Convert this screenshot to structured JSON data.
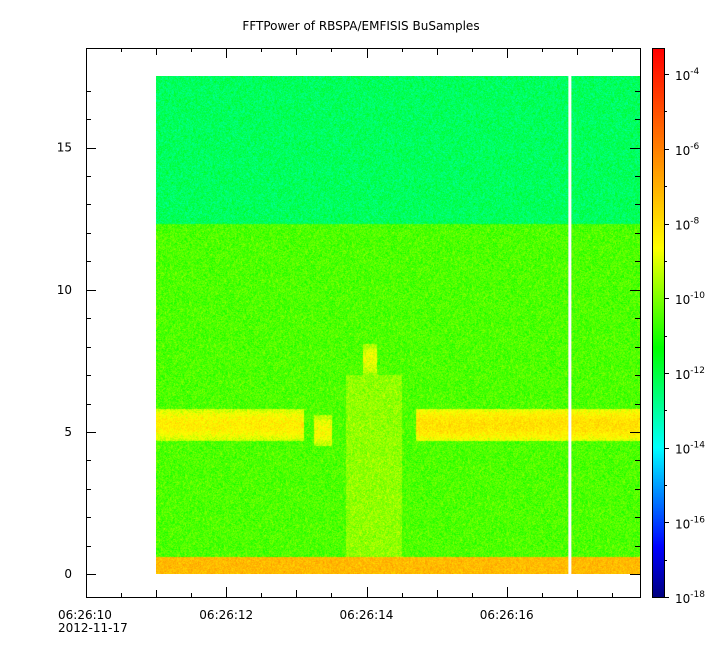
{
  "chart_data": {
    "type": "heatmap",
    "title": "FFTPower of RBSPA/EMFISIS  BuSamples",
    "xlabel": "",
    "ylabel": "",
    "x_ticks": [
      "06:26:10",
      "06:26:12",
      "06:26:14",
      "06:26:16"
    ],
    "x_tick_sublabel": "2012-11-17",
    "y_ticks": [
      0,
      5,
      10,
      15
    ],
    "ylim": [
      -0.8,
      18.5
    ],
    "xlim_seconds": [
      10,
      17.9
    ],
    "data_start_seconds": 11.0,
    "data_end_seconds": 17.9,
    "freq_max": 17.5,
    "gap_seconds": 16.9,
    "colorbar": {
      "scale": "log",
      "range": [
        -18,
        -3.3
      ],
      "tick_exponents": [
        -4,
        -6,
        -8,
        -10,
        -12,
        -14,
        -16,
        -18
      ],
      "base": "10",
      "colors": [
        "#00007f",
        "#0000ff",
        "#007fff",
        "#00ffff",
        "#00ff7f",
        "#00ff00",
        "#7fff00",
        "#ffff00",
        "#ffbf00",
        "#ff7f00",
        "#ff3f00",
        "#ff0000"
      ]
    },
    "features": [
      {
        "label": "background_high",
        "freq_range": [
          12.3,
          17.5
        ],
        "log_power": -12.3
      },
      {
        "label": "background_mid",
        "freq_range": [
          0.6,
          12.3
        ],
        "log_power": -10.5
      },
      {
        "label": "band_5hz_left",
        "freq_range": [
          4.7,
          5.8
        ],
        "time_range": [
          11.0,
          13.1
        ],
        "log_power": -8.3
      },
      {
        "label": "blob_left",
        "freq_range": [
          4.5,
          5.6
        ],
        "time_range": [
          13.25,
          13.5
        ],
        "log_power": -8.6
      },
      {
        "label": "blob_upper",
        "freq_range": [
          7.0,
          8.1
        ],
        "time_range": [
          13.95,
          14.15
        ],
        "log_power": -8.8
      },
      {
        "label": "band_5hz_right",
        "freq_range": [
          4.7,
          5.8
        ],
        "time_range": [
          14.7,
          17.9
        ],
        "log_power": -8.0
      },
      {
        "label": "low_freq_band",
        "freq_range": [
          0.0,
          0.6
        ],
        "log_power": -7.2
      }
    ]
  }
}
